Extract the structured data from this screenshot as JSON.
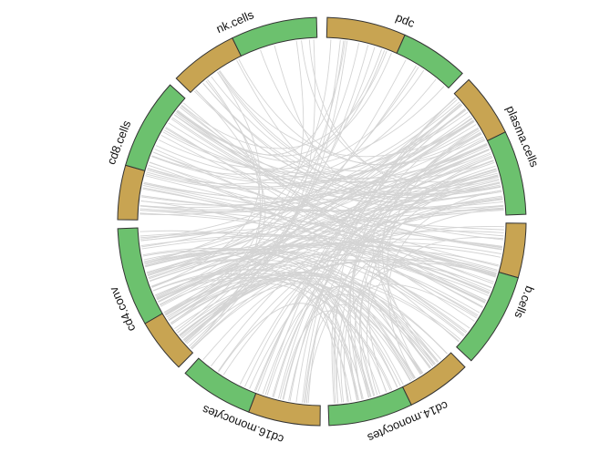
{
  "diagram": {
    "type": "chord",
    "segments": [
      {
        "id": "pdc",
        "label": "pdc",
        "colors": [
          "#c8a452",
          "#6cc16e"
        ]
      },
      {
        "id": "plasma",
        "label": "plasma.cells",
        "colors": [
          "#c8a452",
          "#6cc16e"
        ]
      },
      {
        "id": "bcells",
        "label": "b.cells",
        "colors": [
          "#c8a452",
          "#6cc16e"
        ]
      },
      {
        "id": "cd14",
        "label": "cd14.monocytes",
        "colors": [
          "#c8a452",
          "#6cc16e"
        ]
      },
      {
        "id": "cd16",
        "label": "cd16.monocytes",
        "colors": [
          "#c8a452",
          "#6cc16e"
        ]
      },
      {
        "id": "cd4",
        "label": "cd4.conv",
        "colors": [
          "#c8a452",
          "#6cc16e"
        ]
      },
      {
        "id": "cd8",
        "label": "cd8.cells",
        "colors": [
          "#c8a452",
          "#6cc16e"
        ]
      },
      {
        "id": "nk",
        "label": "nk.cells",
        "colors": [
          "#c8a452",
          "#6cc16e"
        ]
      }
    ],
    "link_color": "#d4d4d4",
    "segment_outline": "#333333"
  }
}
